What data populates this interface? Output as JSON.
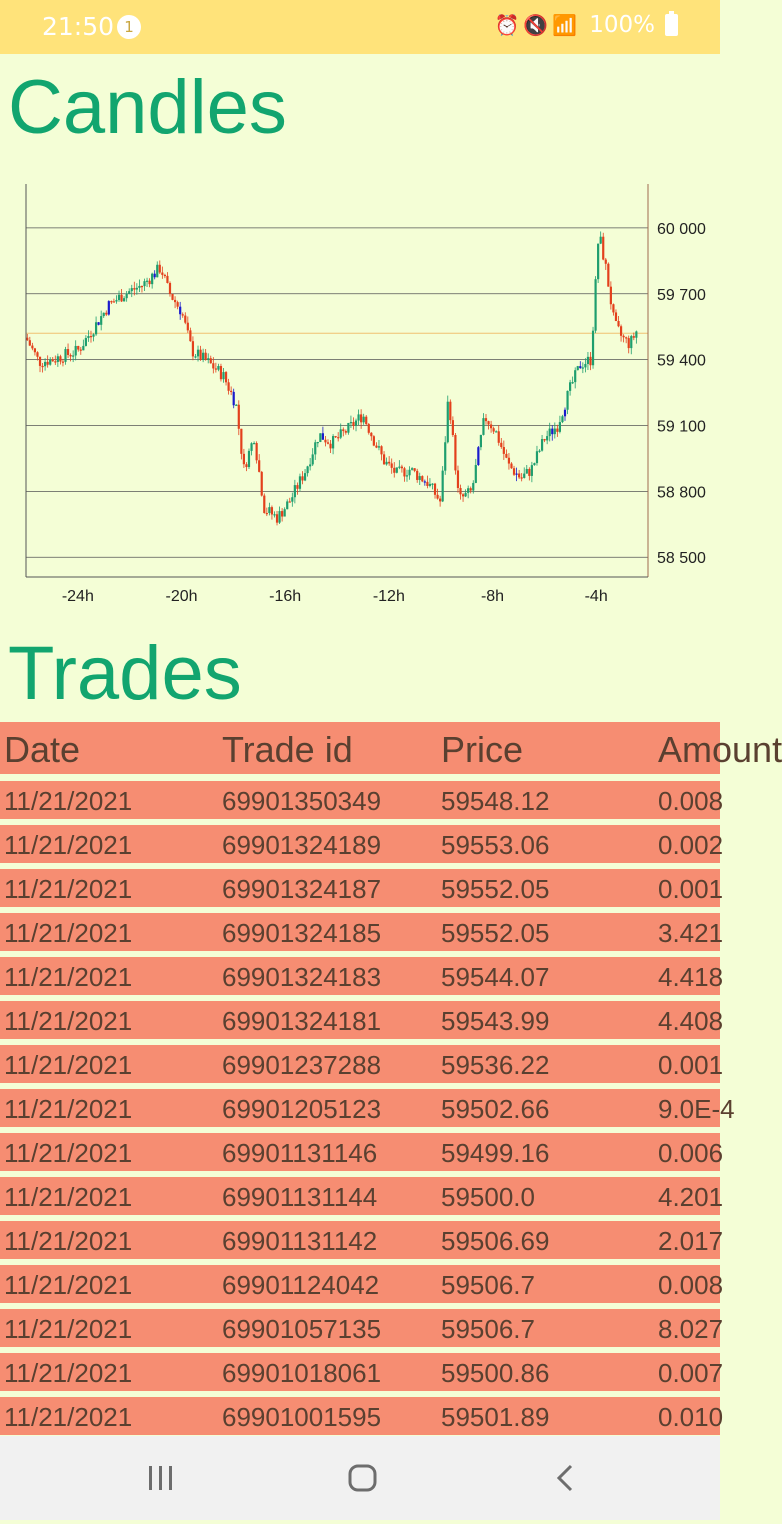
{
  "status": {
    "time": "21:50",
    "notification_count": "1",
    "battery": "100%",
    "icons": [
      "alarm-icon",
      "mute-icon",
      "wifi-icon",
      "signal-icon",
      "battery-icon"
    ]
  },
  "candles_title": "Candles",
  "trades_title": "Trades",
  "colors": {
    "accent": "#12a56f",
    "up": "#1e9e6e",
    "down": "#e3401c",
    "row": "#f68d72",
    "background": "#f4fed6"
  },
  "chart_data": {
    "type": "candlestick",
    "x_tick_labels": [
      "-24h",
      "-20h",
      "-16h",
      "-12h",
      "-8h",
      "-4h"
    ],
    "x_tick_values": [
      -24,
      -20,
      -16,
      -12,
      -8,
      -4
    ],
    "xlim": [
      -26,
      -2
    ],
    "y_tick_labels": [
      "60 000",
      "59 700",
      "59 400",
      "59 100",
      "58 800",
      "58 500"
    ],
    "y_tick_values": [
      60000,
      59700,
      59400,
      59100,
      58800,
      58500
    ],
    "ylim": [
      58410,
      60200
    ],
    "grid": true,
    "reference_line": 59520,
    "price_path": [
      [
        -26,
        59500
      ],
      [
        -25.5,
        59390
      ],
      [
        -25,
        59400
      ],
      [
        -24.5,
        59420
      ],
      [
        -24,
        59440
      ],
      [
        -23.3,
        59560
      ],
      [
        -22.8,
        59650
      ],
      [
        -22.2,
        59700
      ],
      [
        -21.5,
        59740
      ],
      [
        -20.8,
        59820
      ],
      [
        -20.5,
        59710
      ],
      [
        -20.0,
        59620
      ],
      [
        -19.6,
        59440
      ],
      [
        -19.0,
        59390
      ],
      [
        -18.4,
        59330
      ],
      [
        -17.9,
        59200
      ],
      [
        -17.6,
        58900
      ],
      [
        -17.2,
        59050
      ],
      [
        -16.8,
        58720
      ],
      [
        -16.3,
        58680
      ],
      [
        -15.8,
        58760
      ],
      [
        -15.2,
        58900
      ],
      [
        -14.7,
        59060
      ],
      [
        -14.2,
        59020
      ],
      [
        -13.6,
        59080
      ],
      [
        -13.0,
        59150
      ],
      [
        -12.6,
        59040
      ],
      [
        -12.2,
        58940
      ],
      [
        -11.7,
        58880
      ],
      [
        -11.2,
        58900
      ],
      [
        -10.5,
        58840
      ],
      [
        -10.0,
        58750
      ],
      [
        -9.7,
        59240
      ],
      [
        -9.3,
        58760
      ],
      [
        -8.8,
        58800
      ],
      [
        -8.3,
        59140
      ],
      [
        -7.9,
        59080
      ],
      [
        -7.4,
        58920
      ],
      [
        -6.9,
        58860
      ],
      [
        -6.5,
        58900
      ],
      [
        -6.0,
        59040
      ],
      [
        -5.5,
        59100
      ],
      [
        -5.0,
        59270
      ],
      [
        -4.6,
        59380
      ],
      [
        -4.2,
        59400
      ],
      [
        -3.9,
        59980
      ],
      [
        -3.6,
        59800
      ],
      [
        -3.3,
        59560
      ],
      [
        -3.0,
        59500
      ],
      [
        -2.7,
        59470
      ],
      [
        -2.4,
        59540
      ]
    ]
  },
  "trades": {
    "columns": [
      "Date",
      "Trade id",
      "Price",
      "Amount"
    ],
    "rows": [
      [
        "11/21/2021",
        "69901350349",
        "59548.12",
        "0.008"
      ],
      [
        "11/21/2021",
        "69901324189",
        "59553.06",
        "0.002"
      ],
      [
        "11/21/2021",
        "69901324187",
        "59552.05",
        "0.001"
      ],
      [
        "11/21/2021",
        "69901324185",
        "59552.05",
        "3.421"
      ],
      [
        "11/21/2021",
        "69901324183",
        "59544.07",
        "4.418"
      ],
      [
        "11/21/2021",
        "69901324181",
        "59543.99",
        "4.408"
      ],
      [
        "11/21/2021",
        "69901237288",
        "59536.22",
        "0.001"
      ],
      [
        "11/21/2021",
        "69901205123",
        "59502.66",
        "9.0E-4"
      ],
      [
        "11/21/2021",
        "69901131146",
        "59499.16",
        "0.006"
      ],
      [
        "11/21/2021",
        "69901131144",
        "59500.0",
        "4.201"
      ],
      [
        "11/21/2021",
        "69901131142",
        "59506.69",
        "2.017"
      ],
      [
        "11/21/2021",
        "69901124042",
        "59506.7",
        "0.008"
      ],
      [
        "11/21/2021",
        "69901057135",
        "59506.7",
        "8.027"
      ],
      [
        "11/21/2021",
        "69901018061",
        "59500.86",
        "0.007"
      ],
      [
        "11/21/2021",
        "69901001595",
        "59501.89",
        "0.010"
      ]
    ]
  },
  "nav": {
    "icons": [
      "recent-apps-icon",
      "home-icon",
      "back-icon"
    ]
  }
}
